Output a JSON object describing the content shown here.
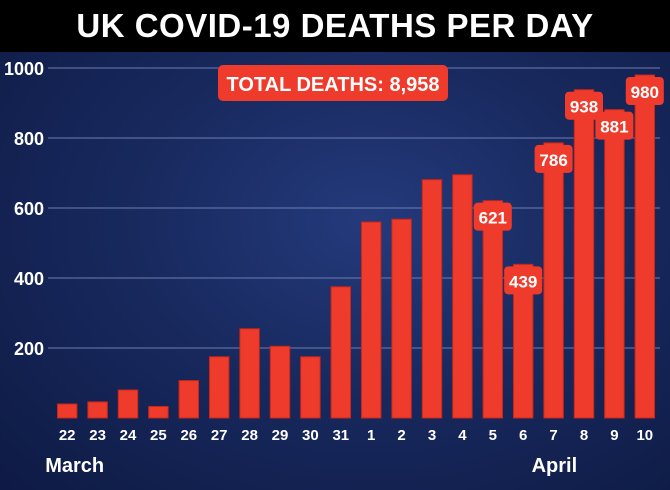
{
  "chart_data": {
    "type": "bar",
    "title": "UK COVID-19 DEATHS PER DAY",
    "annotation": "TOTAL DEATHS: 8,958",
    "categories": [
      "22",
      "23",
      "24",
      "25",
      "26",
      "27",
      "28",
      "29",
      "30",
      "31",
      "1",
      "2",
      "3",
      "4",
      "5",
      "6",
      "7",
      "8",
      "9",
      "10"
    ],
    "values": [
      40,
      46,
      80,
      33,
      107,
      175,
      255,
      205,
      175,
      375,
      560,
      568,
      681,
      695,
      621,
      439,
      786,
      938,
      881,
      980
    ],
    "data_labels": [
      {
        "index": 14,
        "text": "621"
      },
      {
        "index": 15,
        "text": "439"
      },
      {
        "index": 16,
        "text": "786"
      },
      {
        "index": 17,
        "text": "938"
      },
      {
        "index": 18,
        "text": "881"
      },
      {
        "index": 19,
        "text": "980"
      }
    ],
    "month_labels": [
      {
        "index": 0,
        "text": "March"
      },
      {
        "index": 16,
        "text": "April"
      }
    ],
    "yticks": [
      200,
      400,
      600,
      800,
      1000
    ],
    "ylim": [
      0,
      1000
    ],
    "grid": true,
    "colors": {
      "bar": "#ef3b2c",
      "bar_edge": "#c42718",
      "grid": "#6d7db0",
      "label_box": "#ef3b2c"
    }
  }
}
